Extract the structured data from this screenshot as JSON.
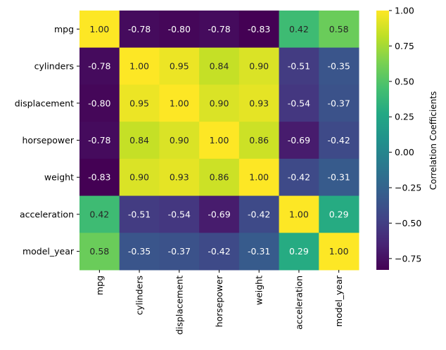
{
  "chart_data": {
    "type": "heatmap",
    "title": "",
    "xlabel": "",
    "ylabel": "",
    "colormap": "viridis",
    "x_categories": [
      "mpg",
      "cylinders",
      "displacement",
      "horsepower",
      "weight",
      "acceleration",
      "model_year"
    ],
    "y_categories": [
      "mpg",
      "cylinders",
      "displacement",
      "horsepower",
      "weight",
      "acceleration",
      "model_year"
    ],
    "values": [
      [
        1.0,
        -0.78,
        -0.8,
        -0.78,
        -0.83,
        0.42,
        0.58
      ],
      [
        -0.78,
        1.0,
        0.95,
        0.84,
        0.9,
        -0.51,
        -0.35
      ],
      [
        -0.8,
        0.95,
        1.0,
        0.9,
        0.93,
        -0.54,
        -0.37
      ],
      [
        -0.78,
        0.84,
        0.9,
        1.0,
        0.86,
        -0.69,
        -0.42
      ],
      [
        -0.83,
        0.9,
        0.93,
        0.86,
        1.0,
        -0.42,
        -0.31
      ],
      [
        0.42,
        -0.51,
        -0.54,
        -0.69,
        -0.42,
        1.0,
        0.29
      ],
      [
        0.58,
        -0.35,
        -0.37,
        -0.42,
        -0.31,
        0.29,
        1.0
      ]
    ],
    "colorbar": {
      "label": "Correlation Coefficients",
      "range": [
        -0.83,
        1.0
      ],
      "ticks": [
        1.0,
        0.75,
        0.5,
        0.25,
        0.0,
        -0.25,
        -0.5,
        -0.75
      ],
      "tick_labels": [
        "1.00",
        "0.75",
        "0.50",
        "0.25",
        "0.00",
        "−0.25",
        "−0.50",
        "−0.75"
      ]
    }
  }
}
